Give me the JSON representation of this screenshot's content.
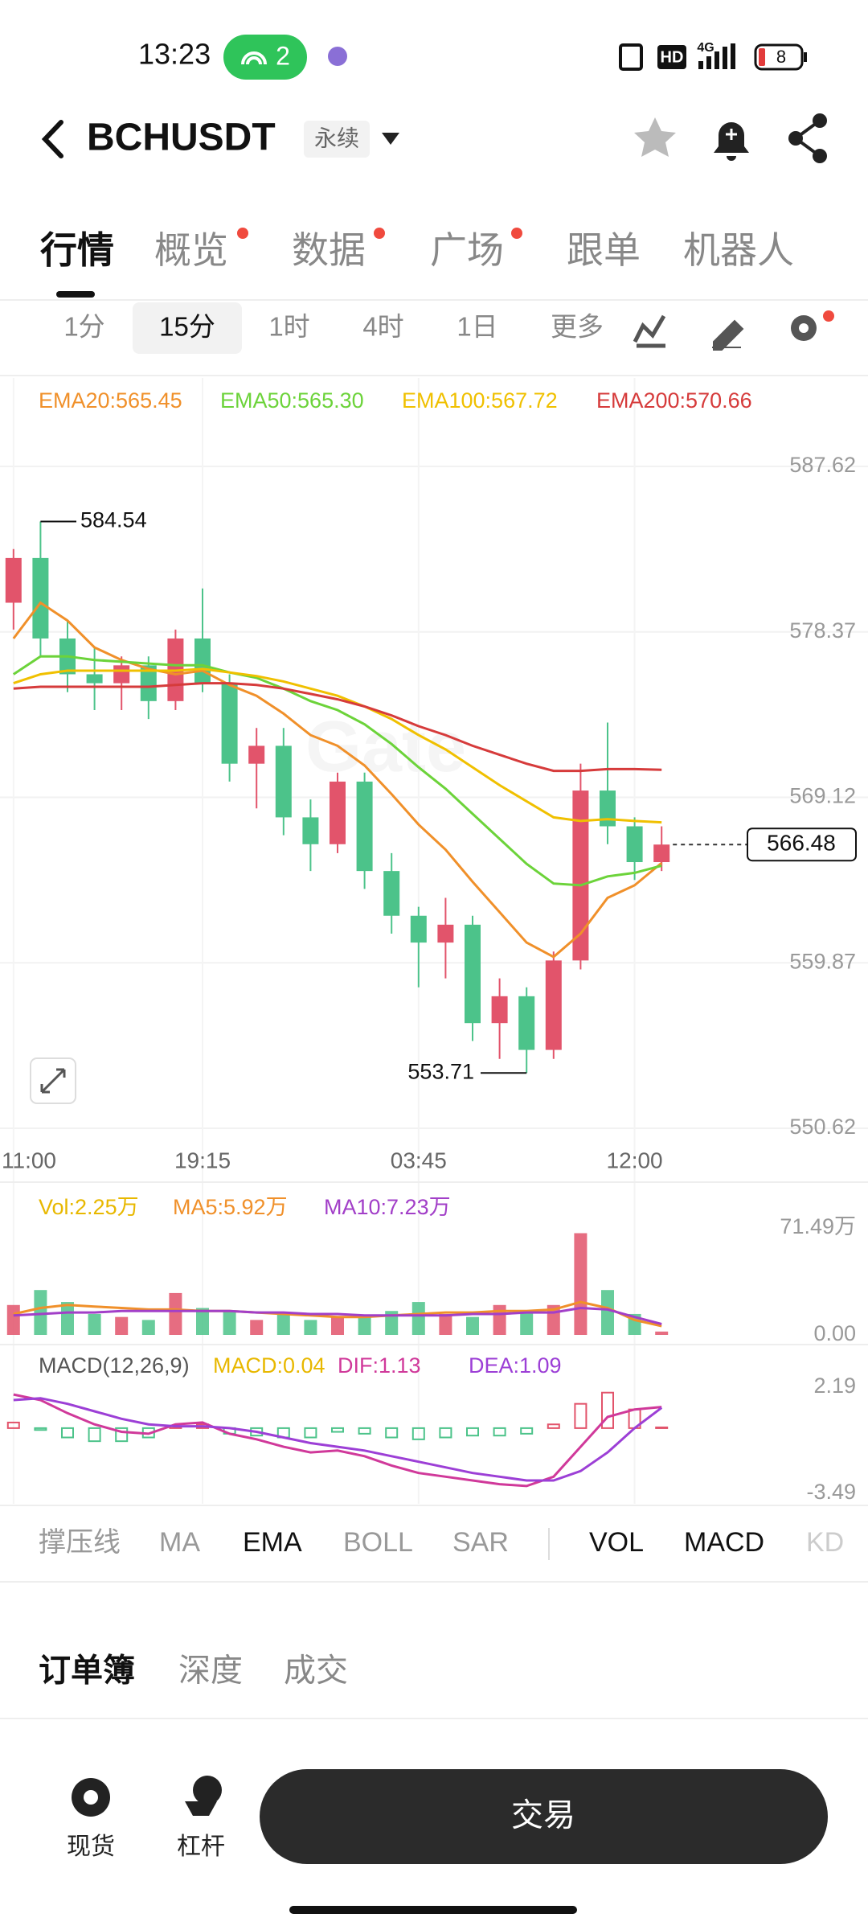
{
  "status_bar": {
    "time": "13:23",
    "hotspot": "2",
    "hd": "HD",
    "network": "4G",
    "battery": "8"
  },
  "header": {
    "symbol": "BCHUSDT",
    "contract": "永续"
  },
  "tabs": {
    "items": [
      "行情",
      "概览",
      "数据",
      "广场",
      "跟单",
      "机器人"
    ],
    "selected": 0
  },
  "intervals": {
    "items": [
      "1分",
      "15分",
      "1时",
      "4时",
      "1日",
      "更多"
    ],
    "selected": 1
  },
  "watermark": "Gate",
  "chart_data": [
    {
      "type": "candlestick",
      "categories": [
        "11:00",
        null,
        null,
        null,
        null,
        null,
        null,
        "19:15",
        null,
        null,
        null,
        null,
        null,
        null,
        null,
        "03:45",
        null,
        null,
        null,
        null,
        null,
        null,
        null,
        "12:00",
        null
      ],
      "open": [
        580,
        582.5,
        578,
        576,
        575.5,
        576.5,
        574.5,
        578,
        575.5,
        571,
        572,
        568,
        566.5,
        570,
        565,
        562.5,
        561,
        562,
        556.5,
        558,
        555,
        560,
        569.5,
        567.5,
        565.5
      ],
      "high": [
        583,
        584.54,
        579,
        577.5,
        577,
        577,
        578.5,
        580.8,
        576,
        573,
        573,
        569,
        570.5,
        570.5,
        566,
        563,
        563.5,
        562.5,
        559,
        558.5,
        560.5,
        571,
        573.3,
        568,
        567.5
      ],
      "low": [
        578.5,
        577,
        575,
        574,
        574,
        573.5,
        574,
        575,
        570,
        568.5,
        567,
        565,
        566,
        564,
        561.5,
        558.5,
        559,
        555.5,
        554.5,
        553.71,
        554.5,
        559.5,
        566.5,
        564.5,
        565
      ],
      "close": [
        582.5,
        578,
        576,
        575.5,
        576.5,
        574.5,
        578,
        575.5,
        571,
        572,
        568,
        566.5,
        570,
        565,
        562.5,
        561,
        562,
        556.5,
        558,
        555,
        560,
        569.5,
        567.5,
        565.5,
        566.48
      ],
      "up_color": "#e2546b",
      "down_color": "#4cc38a",
      "series": [
        {
          "name": "EMA20:565.45",
          "color": "#f0902a",
          "values": [
            578,
            580,
            579,
            577.5,
            576.8,
            576.3,
            576,
            576.2,
            575.4,
            574.8,
            573.8,
            572.6,
            572,
            570.9,
            569.3,
            567.6,
            566.2,
            564.4,
            562.7,
            561,
            560.2,
            561.5,
            563.5,
            564.2,
            565.45
          ]
        },
        {
          "name": "EMA50:565.30",
          "color": "#6cd33a",
          "values": [
            576,
            577,
            577,
            576.8,
            576.7,
            576.6,
            576.5,
            576.5,
            576.1,
            575.8,
            575.2,
            574.5,
            574,
            573.2,
            572.1,
            570.8,
            569.6,
            568.2,
            566.8,
            565.4,
            564.3,
            564.2,
            564.7,
            564.9,
            565.3
          ]
        },
        {
          "name": "EMA100:567.72",
          "color": "#f0c000",
          "values": [
            575.5,
            576,
            576.2,
            576.2,
            576.2,
            576.2,
            576.2,
            576.3,
            576.1,
            575.9,
            575.6,
            575.2,
            574.8,
            574.2,
            573.5,
            572.6,
            571.8,
            570.8,
            569.8,
            568.9,
            568,
            567.8,
            567.9,
            567.8,
            567.72
          ]
        },
        {
          "name": "EMA200:570.66",
          "color": "#d63b3b",
          "values": [
            575.2,
            575.3,
            575.3,
            575.3,
            575.3,
            575.3,
            575.4,
            575.5,
            575.5,
            575.4,
            575.2,
            574.9,
            574.6,
            574.2,
            573.7,
            573.1,
            572.6,
            572,
            571.5,
            571,
            570.6,
            570.6,
            570.7,
            570.7,
            570.66
          ]
        }
      ],
      "ylim": [
        550.62,
        587.62
      ],
      "yticks": [
        587.62,
        578.37,
        569.12,
        559.87,
        550.62
      ],
      "grid": true,
      "high_label": 584.54,
      "low_label": 553.71,
      "last_price": 566.48
    },
    {
      "type": "bar",
      "up_color": "#e2546b",
      "down_color": "#4cc38a",
      "series": [
        {
          "name": "Vol:2.25万",
          "color": "#e8b800",
          "values": [
            20,
            30,
            22,
            14,
            12,
            10,
            28,
            18,
            16,
            10,
            14,
            10,
            12,
            12,
            16,
            22,
            14,
            12,
            20,
            16,
            20,
            68,
            30,
            14,
            2.25
          ]
        },
        {
          "name": "MA5:5.92万",
          "color": "#f0902a",
          "values": [
            14,
            18,
            20,
            19,
            18,
            17,
            17,
            16,
            16,
            15,
            14,
            13,
            12,
            12,
            13,
            14,
            15,
            15,
            16,
            16,
            17,
            22,
            18,
            10,
            5.92
          ]
        },
        {
          "name": "MA10:7.23万",
          "color": "#a23fc8",
          "values": [
            13,
            14,
            15,
            15,
            16,
            16,
            16,
            16,
            16,
            15,
            15,
            14,
            14,
            13,
            13,
            13,
            13,
            14,
            14,
            15,
            15,
            18,
            17,
            12,
            7.23
          ]
        }
      ],
      "ylim": [
        0,
        71.49
      ],
      "yticks": [
        {
          "value": 71.49,
          "label": "71.49万"
        },
        {
          "value": 0,
          "label": "0.00"
        }
      ]
    },
    {
      "type": "macd",
      "title": "MACD(12,26,9)",
      "up_color": "#e2546b",
      "down_color": "#4cc38a",
      "series": [
        {
          "name": "MACD:0.04",
          "color": "#e8b800",
          "values": [
            0.3,
            -0.1,
            -0.5,
            -0.7,
            -0.7,
            -0.5,
            0.1,
            0.2,
            -0.3,
            -0.4,
            -0.5,
            -0.5,
            -0.2,
            -0.3,
            -0.5,
            -0.6,
            -0.5,
            -0.4,
            -0.4,
            -0.3,
            0.2,
            1.3,
            1.9,
            1,
            0.04
          ]
        },
        {
          "name": "DIF:1.13",
          "color": "#d0399a",
          "values": [
            1.8,
            1.5,
            0.8,
            0.2,
            -0.2,
            -0.3,
            0.2,
            0.3,
            -0.3,
            -0.6,
            -1,
            -1.3,
            -1.2,
            -1.5,
            -2,
            -2.4,
            -2.6,
            -2.8,
            -3,
            -3.1,
            -2.6,
            -1,
            0.6,
            1,
            1.13
          ]
        },
        {
          "name": "DEA:1.09",
          "color": "#9c3fd6",
          "values": [
            1.5,
            1.6,
            1.3,
            0.9,
            0.5,
            0.2,
            0.1,
            0.1,
            0,
            -0.2,
            -0.5,
            -0.8,
            -1,
            -1.2,
            -1.5,
            -1.8,
            -2.1,
            -2.4,
            -2.6,
            -2.8,
            -2.8,
            -2.3,
            -1.3,
            0,
            1.09
          ]
        }
      ],
      "ylim": [
        -3.49,
        2.19
      ],
      "yticks": [
        2.19,
        -3.49
      ]
    }
  ],
  "indicators": {
    "items": [
      "撑压线",
      "MA",
      "EMA",
      "BOLL",
      "SAR",
      "VOL",
      "MACD",
      "KD"
    ],
    "active": [
      2,
      5,
      6
    ]
  },
  "orderbook_tabs": {
    "items": [
      "订单簿",
      "深度",
      "成交"
    ],
    "selected": 0
  },
  "bottom_nav": {
    "spot": "现货",
    "margin": "杠杆",
    "trade": "交易"
  }
}
